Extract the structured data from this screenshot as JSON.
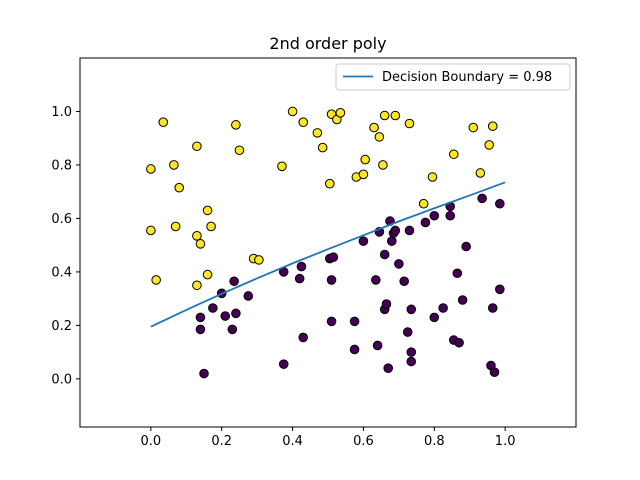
{
  "chart_data": {
    "type": "scatter",
    "title": "2nd order poly",
    "xlabel": "",
    "ylabel": "",
    "xlim": [
      -0.2,
      1.2
    ],
    "ylim": [
      -0.18,
      1.2
    ],
    "x_ticks": [
      0.0,
      0.2,
      0.4,
      0.6,
      0.8,
      1.0
    ],
    "x_tick_labels": [
      "0.0",
      "0.2",
      "0.4",
      "0.6",
      "0.8",
      "1.0"
    ],
    "y_ticks": [
      0.0,
      0.2,
      0.4,
      0.6,
      0.8,
      1.0
    ],
    "y_tick_labels": [
      "0.0",
      "0.2",
      "0.4",
      "0.6",
      "0.8",
      "1.0"
    ],
    "grid": false,
    "legend": {
      "position": "top-right",
      "entries": [
        "Decision Boundary = 0.98"
      ]
    },
    "colors": {
      "class_1": "#fde725",
      "class_0": "#440154",
      "boundary": "#1f77b4",
      "edge": "#000000"
    },
    "series": [
      {
        "name": "Decision Boundary = 0.98",
        "type": "line",
        "points": [
          [
            0.0,
            0.195
          ],
          [
            0.1,
            0.258
          ],
          [
            0.2,
            0.318
          ],
          [
            0.3,
            0.376
          ],
          [
            0.4,
            0.432
          ],
          [
            0.5,
            0.485
          ],
          [
            0.6,
            0.537
          ],
          [
            0.7,
            0.589
          ],
          [
            0.8,
            0.638
          ],
          [
            0.9,
            0.686
          ],
          [
            1.0,
            0.735
          ]
        ]
      },
      {
        "class": 1,
        "type": "scatter",
        "points": [
          [
            0.0,
            0.785
          ],
          [
            0.035,
            0.96
          ],
          [
            0.065,
            0.8
          ],
          [
            0.08,
            0.715
          ],
          [
            0.07,
            0.57
          ],
          [
            0.0,
            0.555
          ],
          [
            0.015,
            0.37
          ],
          [
            0.13,
            0.87
          ],
          [
            0.13,
            0.535
          ],
          [
            0.14,
            0.505
          ],
          [
            0.16,
            0.63
          ],
          [
            0.17,
            0.57
          ],
          [
            0.16,
            0.39
          ],
          [
            0.13,
            0.35
          ],
          [
            0.24,
            0.95
          ],
          [
            0.25,
            0.855
          ],
          [
            0.29,
            0.45
          ],
          [
            0.305,
            0.445
          ],
          [
            0.37,
            0.795
          ],
          [
            0.4,
            1.0
          ],
          [
            0.43,
            0.96
          ],
          [
            0.47,
            0.92
          ],
          [
            0.485,
            0.865
          ],
          [
            0.505,
            0.73
          ],
          [
            0.51,
            0.99
          ],
          [
            0.525,
            0.97
          ],
          [
            0.535,
            0.995
          ],
          [
            0.58,
            0.755
          ],
          [
            0.6,
            0.765
          ],
          [
            0.605,
            0.82
          ],
          [
            0.63,
            0.94
          ],
          [
            0.645,
            0.905
          ],
          [
            0.655,
            0.8
          ],
          [
            0.66,
            0.985
          ],
          [
            0.69,
            0.985
          ],
          [
            0.73,
            0.955
          ],
          [
            0.77,
            0.655
          ],
          [
            0.795,
            0.755
          ],
          [
            0.855,
            0.84
          ],
          [
            0.91,
            0.94
          ],
          [
            0.93,
            0.77
          ],
          [
            0.955,
            0.875
          ],
          [
            0.965,
            0.945
          ]
        ]
      },
      {
        "class": 0,
        "type": "scatter",
        "points": [
          [
            0.14,
            0.23
          ],
          [
            0.14,
            0.185
          ],
          [
            0.15,
            0.02
          ],
          [
            0.175,
            0.265
          ],
          [
            0.2,
            0.32
          ],
          [
            0.21,
            0.235
          ],
          [
            0.23,
            0.185
          ],
          [
            0.235,
            0.365
          ],
          [
            0.24,
            0.245
          ],
          [
            0.275,
            0.31
          ],
          [
            0.375,
            0.4
          ],
          [
            0.375,
            0.055
          ],
          [
            0.42,
            0.375
          ],
          [
            0.425,
            0.42
          ],
          [
            0.43,
            0.155
          ],
          [
            0.505,
            0.45
          ],
          [
            0.515,
            0.455
          ],
          [
            0.51,
            0.37
          ],
          [
            0.51,
            0.215
          ],
          [
            0.575,
            0.215
          ],
          [
            0.575,
            0.11
          ],
          [
            0.6,
            0.515
          ],
          [
            0.635,
            0.37
          ],
          [
            0.64,
            0.125
          ],
          [
            0.645,
            0.55
          ],
          [
            0.66,
            0.465
          ],
          [
            0.66,
            0.26
          ],
          [
            0.665,
            0.28
          ],
          [
            0.67,
            0.04
          ],
          [
            0.675,
            0.59
          ],
          [
            0.68,
            0.515
          ],
          [
            0.685,
            0.545
          ],
          [
            0.69,
            0.555
          ],
          [
            0.7,
            0.43
          ],
          [
            0.715,
            0.365
          ],
          [
            0.725,
            0.175
          ],
          [
            0.73,
            0.555
          ],
          [
            0.735,
            0.26
          ],
          [
            0.735,
            0.1
          ],
          [
            0.735,
            0.065
          ],
          [
            0.775,
            0.585
          ],
          [
            0.8,
            0.61
          ],
          [
            0.8,
            0.23
          ],
          [
            0.825,
            0.265
          ],
          [
            0.845,
            0.61
          ],
          [
            0.845,
            0.645
          ],
          [
            0.855,
            0.145
          ],
          [
            0.865,
            0.395
          ],
          [
            0.87,
            0.135
          ],
          [
            0.88,
            0.295
          ],
          [
            0.89,
            0.495
          ],
          [
            0.935,
            0.675
          ],
          [
            0.96,
            0.05
          ],
          [
            0.965,
            0.265
          ],
          [
            0.97,
            0.025
          ],
          [
            0.985,
            0.655
          ],
          [
            0.985,
            0.335
          ]
        ]
      }
    ]
  }
}
